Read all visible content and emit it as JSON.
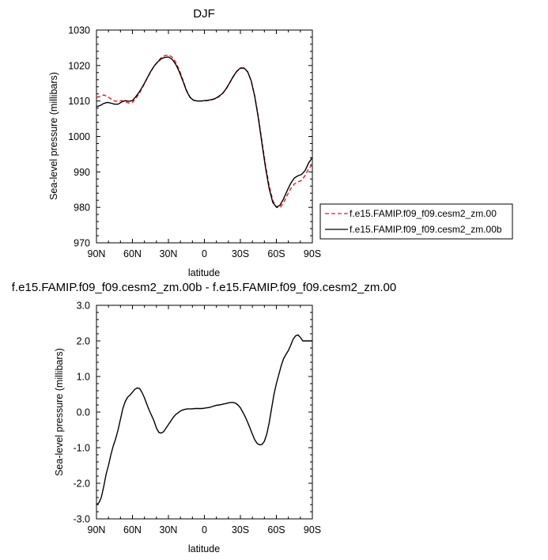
{
  "chart_data": [
    {
      "type": "line",
      "title": "DJF",
      "xlabel": "latitude",
      "ylabel": "Sea-level pressure (millibars)",
      "xlim": [
        90,
        -90
      ],
      "ylim": [
        970,
        1030
      ],
      "x_tick_values": [
        90,
        60,
        30,
        0,
        -30,
        -60,
        -90
      ],
      "x_tick_labels": [
        "90N",
        "60N",
        "30N",
        "0",
        "30S",
        "60S",
        "90S"
      ],
      "y_tick_values": [
        970,
        980,
        990,
        1000,
        1010,
        1020,
        1030
      ],
      "y_tick_labels": [
        "970",
        "980",
        "990",
        "1000",
        "1010",
        "1020",
        "1030"
      ],
      "grid": false,
      "legend_placement": "right",
      "series": [
        {
          "name": "f.e15.FAMIP.f09_f09.cesm2_zm.00",
          "color": "#e8191e",
          "dash": "dashed",
          "x": [
            90,
            87,
            84,
            81,
            78,
            75,
            72,
            69,
            66,
            63,
            60,
            57,
            54,
            51,
            48,
            45,
            42,
            39,
            36,
            33,
            30,
            27,
            24,
            21,
            18,
            15,
            12,
            9,
            6,
            3,
            0,
            -3,
            -6,
            -9,
            -12,
            -15,
            -18,
            -21,
            -24,
            -27,
            -30,
            -33,
            -36,
            -39,
            -42,
            -45,
            -48,
            -51,
            -54,
            -57,
            -60,
            -63,
            -66,
            -69,
            -72,
            -75,
            -78,
            -81,
            -84,
            -87,
            -90
          ],
          "y": [
            1011.0,
            1011.3,
            1011.7,
            1011.3,
            1010.6,
            1010.0,
            1009.9,
            1010.1,
            1009.8,
            1009.4,
            1009.6,
            1010.8,
            1012.3,
            1014.2,
            1016.2,
            1018.1,
            1019.8,
            1021.1,
            1022.2,
            1022.8,
            1023.0,
            1022.4,
            1021.0,
            1018.8,
            1016.0,
            1013.1,
            1011.1,
            1010.2,
            1010.0,
            1010.0,
            1010.0,
            1010.1,
            1010.3,
            1010.6,
            1011.2,
            1012.0,
            1013.3,
            1015.0,
            1016.8,
            1018.3,
            1019.2,
            1019.2,
            1018.2,
            1015.7,
            1011.4,
            1005.5,
            998.6,
            991.8,
            986.1,
            982.0,
            980.0,
            979.9,
            981.3,
            983.4,
            985.3,
            986.6,
            987.2,
            987.6,
            989.0,
            991.0,
            992.0
          ]
        },
        {
          "name": "f.e15.FAMIP.f09_f09.cesm2_zm.00b",
          "color": "#000000",
          "dash": "solid",
          "x": [
            90,
            87,
            84,
            81,
            78,
            75,
            72,
            69,
            66,
            63,
            60,
            57,
            54,
            51,
            48,
            45,
            42,
            39,
            36,
            33,
            30,
            27,
            24,
            21,
            18,
            15,
            12,
            9,
            6,
            3,
            0,
            -3,
            -6,
            -9,
            -12,
            -15,
            -18,
            -21,
            -24,
            -27,
            -30,
            -33,
            -36,
            -39,
            -42,
            -45,
            -48,
            -51,
            -54,
            -57,
            -60,
            -63,
            -66,
            -69,
            -72,
            -75,
            -78,
            -81,
            -84,
            -87,
            -90
          ],
          "y": [
            1008.4,
            1008.7,
            1009.3,
            1009.6,
            1009.4,
            1009.1,
            1009.1,
            1009.7,
            1010.1,
            1009.9,
            1010.1,
            1011.3,
            1012.7,
            1014.4,
            1016.3,
            1018.2,
            1019.8,
            1021.0,
            1021.9,
            1022.3,
            1022.4,
            1021.8,
            1020.4,
            1018.3,
            1015.7,
            1012.9,
            1011.0,
            1010.2,
            1010.0,
            1010.0,
            1010.1,
            1010.2,
            1010.4,
            1010.7,
            1011.3,
            1012.1,
            1013.4,
            1015.1,
            1016.9,
            1018.4,
            1019.3,
            1019.3,
            1018.3,
            1015.7,
            1011.2,
            1005.1,
            998.0,
            991.1,
            985.3,
            981.4,
            980.1,
            980.6,
            982.4,
            984.7,
            986.8,
            988.3,
            988.9,
            989.3,
            990.4,
            992.6,
            994.0
          ]
        }
      ]
    },
    {
      "type": "line",
      "title": "f.e15.FAMIP.f09_f09.cesm2_zm.00b - f.e15.FAMIP.f09_f09.cesm2_zm.00",
      "xlabel": "latitude",
      "ylabel": "Sea-level pressure (millibars)",
      "xlim": [
        90,
        -90
      ],
      "ylim": [
        -3.0,
        3.0
      ],
      "x_tick_values": [
        90,
        60,
        30,
        0,
        -30,
        -60,
        -90
      ],
      "x_tick_labels": [
        "90N",
        "60N",
        "30N",
        "0",
        "30S",
        "60S",
        "90S"
      ],
      "y_tick_values": [
        -3.0,
        -2.0,
        -1.0,
        0.0,
        1.0,
        2.0,
        3.0
      ],
      "y_tick_labels": [
        "-3.0",
        "-2.0",
        "-1.0",
        "0.0",
        "1.0",
        "2.0",
        "3.0"
      ],
      "grid": false,
      "series": [
        {
          "color": "#000000",
          "dash": "solid",
          "x": [
            90,
            88,
            86,
            84,
            82,
            80,
            78,
            76,
            74,
            72,
            70,
            68,
            66,
            64,
            62,
            60,
            58,
            56,
            54,
            52,
            50,
            48,
            46,
            44,
            42,
            40,
            38,
            36,
            34,
            32,
            30,
            28,
            26,
            24,
            22,
            20,
            18,
            16,
            14,
            12,
            10,
            8,
            6,
            4,
            2,
            0,
            -2,
            -4,
            -6,
            -8,
            -10,
            -12,
            -14,
            -16,
            -18,
            -20,
            -22,
            -24,
            -26,
            -28,
            -30,
            -32,
            -34,
            -36,
            -38,
            -40,
            -42,
            -44,
            -46,
            -48,
            -50,
            -52,
            -54,
            -56,
            -58,
            -60,
            -62,
            -64,
            -66,
            -68,
            -70,
            -72,
            -74,
            -76,
            -78,
            -80,
            -82,
            -84,
            -86,
            -88,
            -90
          ],
          "y": [
            -2.6,
            -2.55,
            -2.4,
            -2.1,
            -1.75,
            -1.5,
            -1.2,
            -0.95,
            -0.75,
            -0.5,
            -0.2,
            0.1,
            0.3,
            0.42,
            0.48,
            0.56,
            0.64,
            0.68,
            0.66,
            0.55,
            0.4,
            0.22,
            0.05,
            -0.1,
            -0.25,
            -0.45,
            -0.57,
            -0.59,
            -0.55,
            -0.45,
            -0.35,
            -0.25,
            -0.15,
            -0.07,
            -0.02,
            0.03,
            0.06,
            0.08,
            0.09,
            0.09,
            0.09,
            0.1,
            0.1,
            0.1,
            0.1,
            0.11,
            0.12,
            0.13,
            0.15,
            0.17,
            0.19,
            0.2,
            0.21,
            0.23,
            0.24,
            0.26,
            0.27,
            0.27,
            0.25,
            0.2,
            0.12,
            0.0,
            -0.13,
            -0.28,
            -0.45,
            -0.62,
            -0.78,
            -0.88,
            -0.92,
            -0.91,
            -0.82,
            -0.62,
            -0.3,
            0.1,
            0.5,
            0.8,
            1.05,
            1.3,
            1.5,
            1.62,
            1.73,
            1.88,
            2.05,
            2.14,
            2.17,
            2.1,
            2.0,
            2.0,
            2.0,
            2.0,
            2.0
          ]
        }
      ]
    }
  ]
}
